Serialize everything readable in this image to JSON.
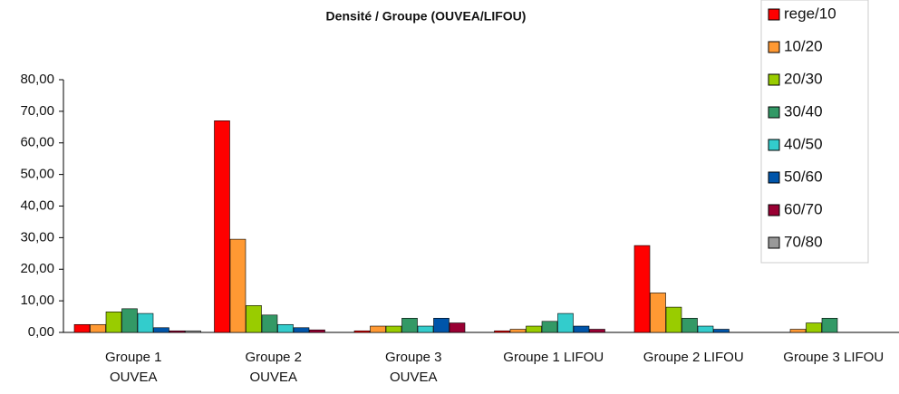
{
  "chart_data": {
    "type": "bar",
    "title": "Densité / Groupe (OUVEA/LIFOU)",
    "categories": [
      "Groupe 1\nOUVEA",
      "Groupe 2\nOUVEA",
      "Groupe 3\nOUVEA",
      "Groupe 1 LIFOU",
      "Groupe 2 LIFOU",
      "Groupe 3 LIFOU"
    ],
    "series": [
      {
        "name": "rege/10",
        "color": "#ff0000",
        "values": [
          2.5,
          67,
          0.5,
          0.5,
          27.5,
          0
        ]
      },
      {
        "name": "10/20",
        "color": "#ff9933",
        "values": [
          2.5,
          29.5,
          2,
          1,
          12.5,
          1
        ]
      },
      {
        "name": "20/30",
        "color": "#99cc00",
        "values": [
          6.5,
          8.5,
          2,
          2,
          8,
          3
        ]
      },
      {
        "name": "30/40",
        "color": "#339966",
        "values": [
          7.5,
          5.5,
          4.5,
          3.5,
          4.5,
          4.5
        ]
      },
      {
        "name": "40/50",
        "color": "#33cccc",
        "values": [
          6,
          2.5,
          2,
          6,
          2,
          null
        ]
      },
      {
        "name": "50/60",
        "color": "#0055aa",
        "values": [
          1.5,
          1.5,
          4.5,
          2,
          1,
          null
        ]
      },
      {
        "name": "60/70",
        "color": "#990033",
        "values": [
          0.5,
          0.8,
          3,
          1,
          0,
          null
        ]
      },
      {
        "name": "70/80",
        "color": "#999999",
        "values": [
          0.5,
          0,
          0,
          0,
          0,
          null
        ]
      }
    ],
    "ylim": [
      0,
      80
    ],
    "yticks": [
      {
        "value": 0,
        "label": "0,00"
      },
      {
        "value": 10,
        "label": "10,00"
      },
      {
        "value": 20,
        "label": "20,00"
      },
      {
        "value": 30,
        "label": "30,00"
      },
      {
        "value": 40,
        "label": "40,00"
      },
      {
        "value": 50,
        "label": "50,00"
      },
      {
        "value": 60,
        "label": "60,00"
      },
      {
        "value": 70,
        "label": "70,00"
      },
      {
        "value": 80,
        "label": "80,00"
      }
    ],
    "legend": "top-right"
  }
}
